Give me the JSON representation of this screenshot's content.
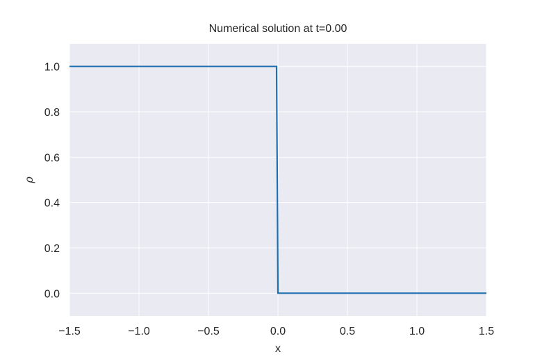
{
  "chart_data": {
    "type": "line",
    "title": "Numerical solution at t=0.00",
    "xlabel": "x",
    "ylabel": "ρ",
    "xlim": [
      -1.5,
      1.5
    ],
    "ylim": [
      -0.1,
      1.1
    ],
    "xticks": [
      -1.5,
      -1.0,
      -0.5,
      0.0,
      0.5,
      1.0,
      1.5
    ],
    "xtick_labels": [
      "−1.5",
      "−1.0",
      "−0.5",
      "0.0",
      "0.5",
      "1.0",
      "1.5"
    ],
    "yticks": [
      0.0,
      0.2,
      0.4,
      0.6,
      0.8,
      1.0
    ],
    "ytick_labels": [
      "0.0",
      "0.2",
      "0.4",
      "0.6",
      "0.8",
      "1.0"
    ],
    "grid": true,
    "background": "#eaeaf2",
    "series": [
      {
        "color": "#1f6fb0",
        "x": [
          -1.5,
          -0.01,
          0.0,
          1.5
        ],
        "y": [
          1.0,
          1.0,
          0.0,
          0.0
        ]
      }
    ]
  }
}
